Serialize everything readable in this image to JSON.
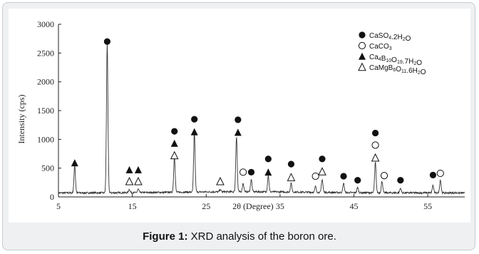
{
  "figure": {
    "caption_label": "Figure 1:",
    "caption_text": " XRD analysis of the boron ore."
  },
  "chart_data": {
    "type": "line",
    "title": "",
    "xlabel": "2θ (Degree)",
    "ylabel": "Intensity (cps)",
    "xlim": [
      5,
      60
    ],
    "ylim": [
      0,
      3000
    ],
    "xticks": [
      "5",
      "15",
      "25",
      "35",
      "45",
      "55"
    ],
    "yticks": [
      "0",
      "500",
      "1000",
      "1500",
      "2000",
      "2500",
      "3000"
    ],
    "grid": false,
    "legend_position": "top-right",
    "legend": [
      {
        "marker": "filled-circle",
        "base": "CaSO",
        "sub1": "4",
        "mid": ".2H",
        "sub2": "2",
        "tail": "O"
      },
      {
        "marker": "open-circle",
        "base": "CaCO",
        "sub1": "3",
        "mid": "",
        "sub2": "",
        "tail": ""
      },
      {
        "marker": "filled-triangle",
        "base": "Ca",
        "sub1": "4",
        "mid": "B",
        "sub2": "10",
        "tail": "O",
        "sub3": "19",
        "tail2": ".7H",
        "sub4": "2",
        "tail3": "O"
      },
      {
        "marker": "open-triangle",
        "base": "CaMgB",
        "sub1": "6",
        "mid": "O",
        "sub2": "11",
        "tail": ".6H",
        "sub3": "2",
        "tail2": "O"
      }
    ],
    "peaks": [
      {
        "x": 7.2,
        "y": 480
      },
      {
        "x": 11.6,
        "y": 2600
      },
      {
        "x": 14.6,
        "y": 60
      },
      {
        "x": 15.8,
        "y": 60
      },
      {
        "x": 20.7,
        "y": 630
      },
      {
        "x": 23.4,
        "y": 1040
      },
      {
        "x": 26.9,
        "y": 40
      },
      {
        "x": 29.1,
        "y": 960
      },
      {
        "x": 30.0,
        "y": 150
      },
      {
        "x": 31.1,
        "y": 220
      },
      {
        "x": 33.4,
        "y": 280
      },
      {
        "x": 36.5,
        "y": 150
      },
      {
        "x": 39.8,
        "y": 100
      },
      {
        "x": 40.7,
        "y": 230
      },
      {
        "x": 43.6,
        "y": 160
      },
      {
        "x": 45.5,
        "y": 90
      },
      {
        "x": 47.9,
        "y": 530
      },
      {
        "x": 48.8,
        "y": 200
      },
      {
        "x": 51.3,
        "y": 80
      },
      {
        "x": 55.7,
        "y": 130
      },
      {
        "x": 56.7,
        "y": 230
      }
    ],
    "baseline": 70,
    "markers": [
      {
        "x": 7.2,
        "y": 590,
        "shape": "filled-triangle"
      },
      {
        "x": 11.6,
        "y": 2700,
        "shape": "filled-circle"
      },
      {
        "x": 14.6,
        "y": 470,
        "shape": "filled-triangle"
      },
      {
        "x": 14.6,
        "y": 270,
        "shape": "open-triangle"
      },
      {
        "x": 15.8,
        "y": 470,
        "shape": "filled-triangle"
      },
      {
        "x": 15.8,
        "y": 270,
        "shape": "open-triangle"
      },
      {
        "x": 20.7,
        "y": 1140,
        "shape": "filled-circle"
      },
      {
        "x": 20.7,
        "y": 930,
        "shape": "filled-triangle"
      },
      {
        "x": 20.7,
        "y": 720,
        "shape": "open-triangle"
      },
      {
        "x": 23.4,
        "y": 1350,
        "shape": "filled-circle"
      },
      {
        "x": 23.4,
        "y": 1130,
        "shape": "filled-triangle"
      },
      {
        "x": 26.9,
        "y": 270,
        "shape": "open-triangle"
      },
      {
        "x": 29.3,
        "y": 1340,
        "shape": "filled-circle"
      },
      {
        "x": 29.3,
        "y": 1120,
        "shape": "filled-triangle"
      },
      {
        "x": 30.0,
        "y": 430,
        "shape": "open-circle"
      },
      {
        "x": 31.1,
        "y": 430,
        "shape": "filled-circle"
      },
      {
        "x": 33.4,
        "y": 660,
        "shape": "filled-circle"
      },
      {
        "x": 33.4,
        "y": 430,
        "shape": "filled-triangle"
      },
      {
        "x": 36.5,
        "y": 570,
        "shape": "filled-circle"
      },
      {
        "x": 36.5,
        "y": 340,
        "shape": "open-triangle"
      },
      {
        "x": 39.8,
        "y": 360,
        "shape": "open-circle"
      },
      {
        "x": 40.7,
        "y": 660,
        "shape": "filled-circle"
      },
      {
        "x": 40.7,
        "y": 440,
        "shape": "open-triangle"
      },
      {
        "x": 43.6,
        "y": 360,
        "shape": "filled-circle"
      },
      {
        "x": 45.5,
        "y": 290,
        "shape": "filled-circle"
      },
      {
        "x": 47.9,
        "y": 1110,
        "shape": "filled-circle"
      },
      {
        "x": 47.9,
        "y": 900,
        "shape": "open-circle"
      },
      {
        "x": 47.9,
        "y": 680,
        "shape": "open-triangle"
      },
      {
        "x": 49.1,
        "y": 370,
        "shape": "open-circle"
      },
      {
        "x": 51.3,
        "y": 290,
        "shape": "filled-circle"
      },
      {
        "x": 55.7,
        "y": 380,
        "shape": "filled-circle"
      },
      {
        "x": 56.7,
        "y": 410,
        "shape": "open-circle"
      }
    ],
    "colors": {
      "line": "#333333",
      "marker": "#111111",
      "axis": "#222222"
    }
  }
}
